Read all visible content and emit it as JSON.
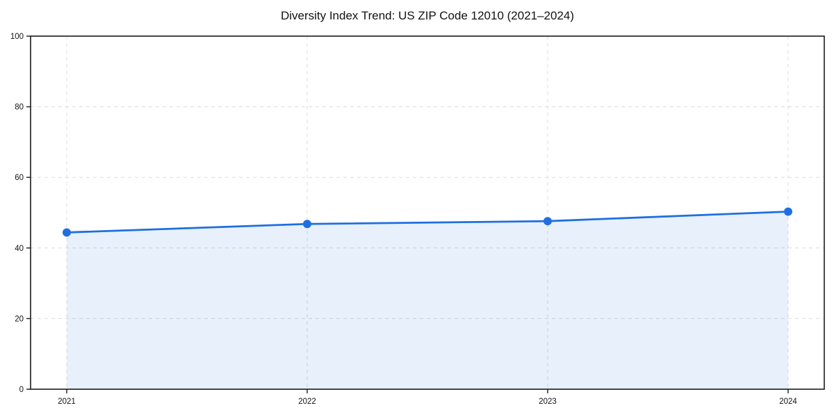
{
  "chart_data": {
    "type": "line",
    "title": "Diversity Index Trend: US ZIP Code 12010 (2021–2024)",
    "xlabel": "",
    "ylabel": "",
    "categories": [
      "2021",
      "2022",
      "2023",
      "2024"
    ],
    "series": [
      {
        "name": "Diversity Index",
        "values": [
          44.4,
          46.8,
          47.6,
          50.3
        ],
        "marker": "circle",
        "area_fill": true
      }
    ],
    "ylim": [
      0,
      100
    ],
    "yticks": [
      0,
      20,
      40,
      60,
      80,
      100
    ],
    "grid": true,
    "grid_style": "dashed",
    "legend_position": "none"
  },
  "colors": {
    "line": "#1f6fe0",
    "marker": "#1f6fe0",
    "area_fill": "rgba(31,111,224,0.10)",
    "grid": "#dcdcdc",
    "spine": "#1a1a1a",
    "tick_text": "#111111",
    "background": "#ffffff"
  }
}
